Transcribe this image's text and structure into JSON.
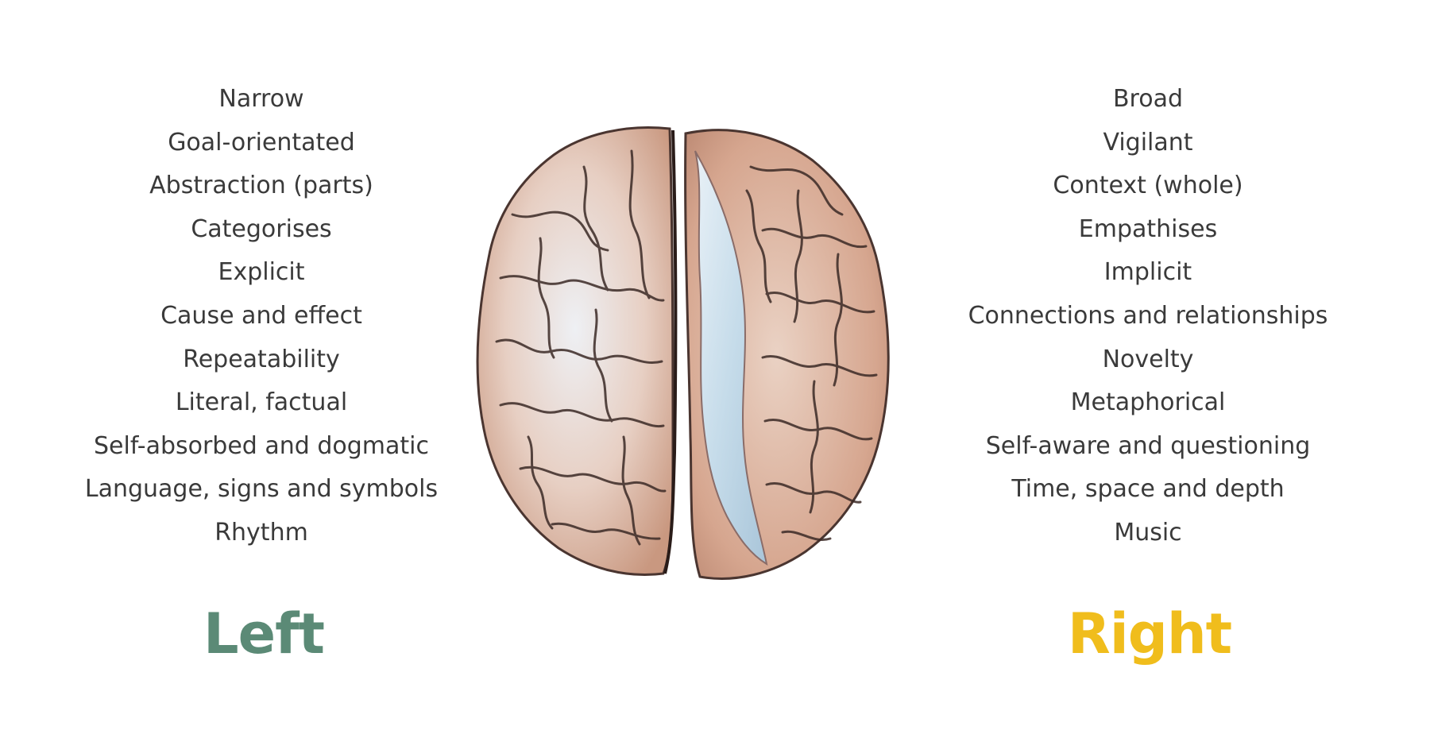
{
  "left": {
    "heading": "Left",
    "traits": [
      "Narrow",
      "Goal-orientated",
      "Abstraction (parts)",
      "Categorises",
      "Explicit",
      "Cause and effect",
      "Repeatability",
      "Literal, factual",
      "Self-absorbed and dogmatic",
      "Language, signs and symbols",
      "Rhythm"
    ]
  },
  "right": {
    "heading": "Right",
    "traits": [
      "Broad",
      "Vigilant",
      "Context (whole)",
      "Empathises",
      "Implicit",
      "Connections and relationships",
      "Novelty",
      "Metaphorical",
      "Self-aware and questioning",
      "Time, space and depth",
      "Music"
    ]
  },
  "colors": {
    "text": "#3a3a3a",
    "left_heading": "#5b8a76",
    "right_heading": "#f0bd1c",
    "brain_tissue": "#d9a994",
    "brain_outline": "#3b2a26",
    "medial_surface": "#c9dbe8"
  }
}
